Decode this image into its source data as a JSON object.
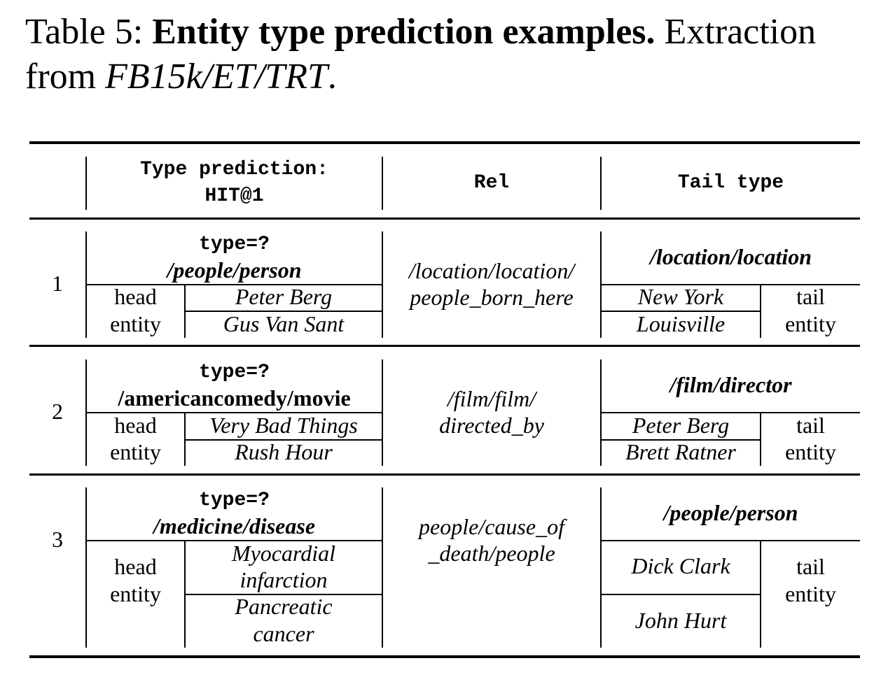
{
  "caption": {
    "label": "Table 5:",
    "title": "Entity type prediction examples.",
    "text": "Extraction",
    "line2_prefix": "from",
    "dataset": "FB15k/ET/TRT",
    "line2_suffix": "."
  },
  "header": {
    "type_prediction_line1": "Type prediction:",
    "type_prediction_line2": "HIT@1",
    "rel": "Rel",
    "tail_type": "Tail type"
  },
  "rows": [
    {
      "index": "1",
      "query": "type=?",
      "predicted_type": "/people/person",
      "head_label_1": "head",
      "head_label_2": "entity",
      "head_entities": [
        "Peter Berg",
        "Gus Van Sant"
      ],
      "rel_line1": "/location/location/",
      "rel_line2": "people_born_here",
      "tail_type": "/location/location",
      "tail_entities": [
        "New York",
        "Louisville"
      ],
      "tail_label_1": "tail",
      "tail_label_2": "entity"
    },
    {
      "index": "2",
      "query": "type=?",
      "predicted_type": "/americancomedy/movie",
      "head_label_1": "head",
      "head_label_2": "entity",
      "head_entities": [
        "Very Bad Things",
        "Rush Hour"
      ],
      "rel_line1": "/film/film/",
      "rel_line2": "directed_by",
      "tail_type": "/film/director",
      "tail_entities": [
        "Peter Berg",
        "Brett Ratner"
      ],
      "tail_label_1": "tail",
      "tail_label_2": "entity"
    },
    {
      "index": "3",
      "query": "type=?",
      "predicted_type": "/medicine/disease",
      "head_label_1": "head",
      "head_label_2": "entity",
      "head_entities": [
        "Myocardial",
        "infarction",
        "Pancreatic",
        "cancer"
      ],
      "rel_line1": "people/cause_of",
      "rel_line2": "_death/people",
      "tail_type": "/people/person",
      "tail_entities": [
        "Dick Clark",
        "John Hurt"
      ],
      "tail_label_1": "tail",
      "tail_label_2": "entity"
    }
  ]
}
